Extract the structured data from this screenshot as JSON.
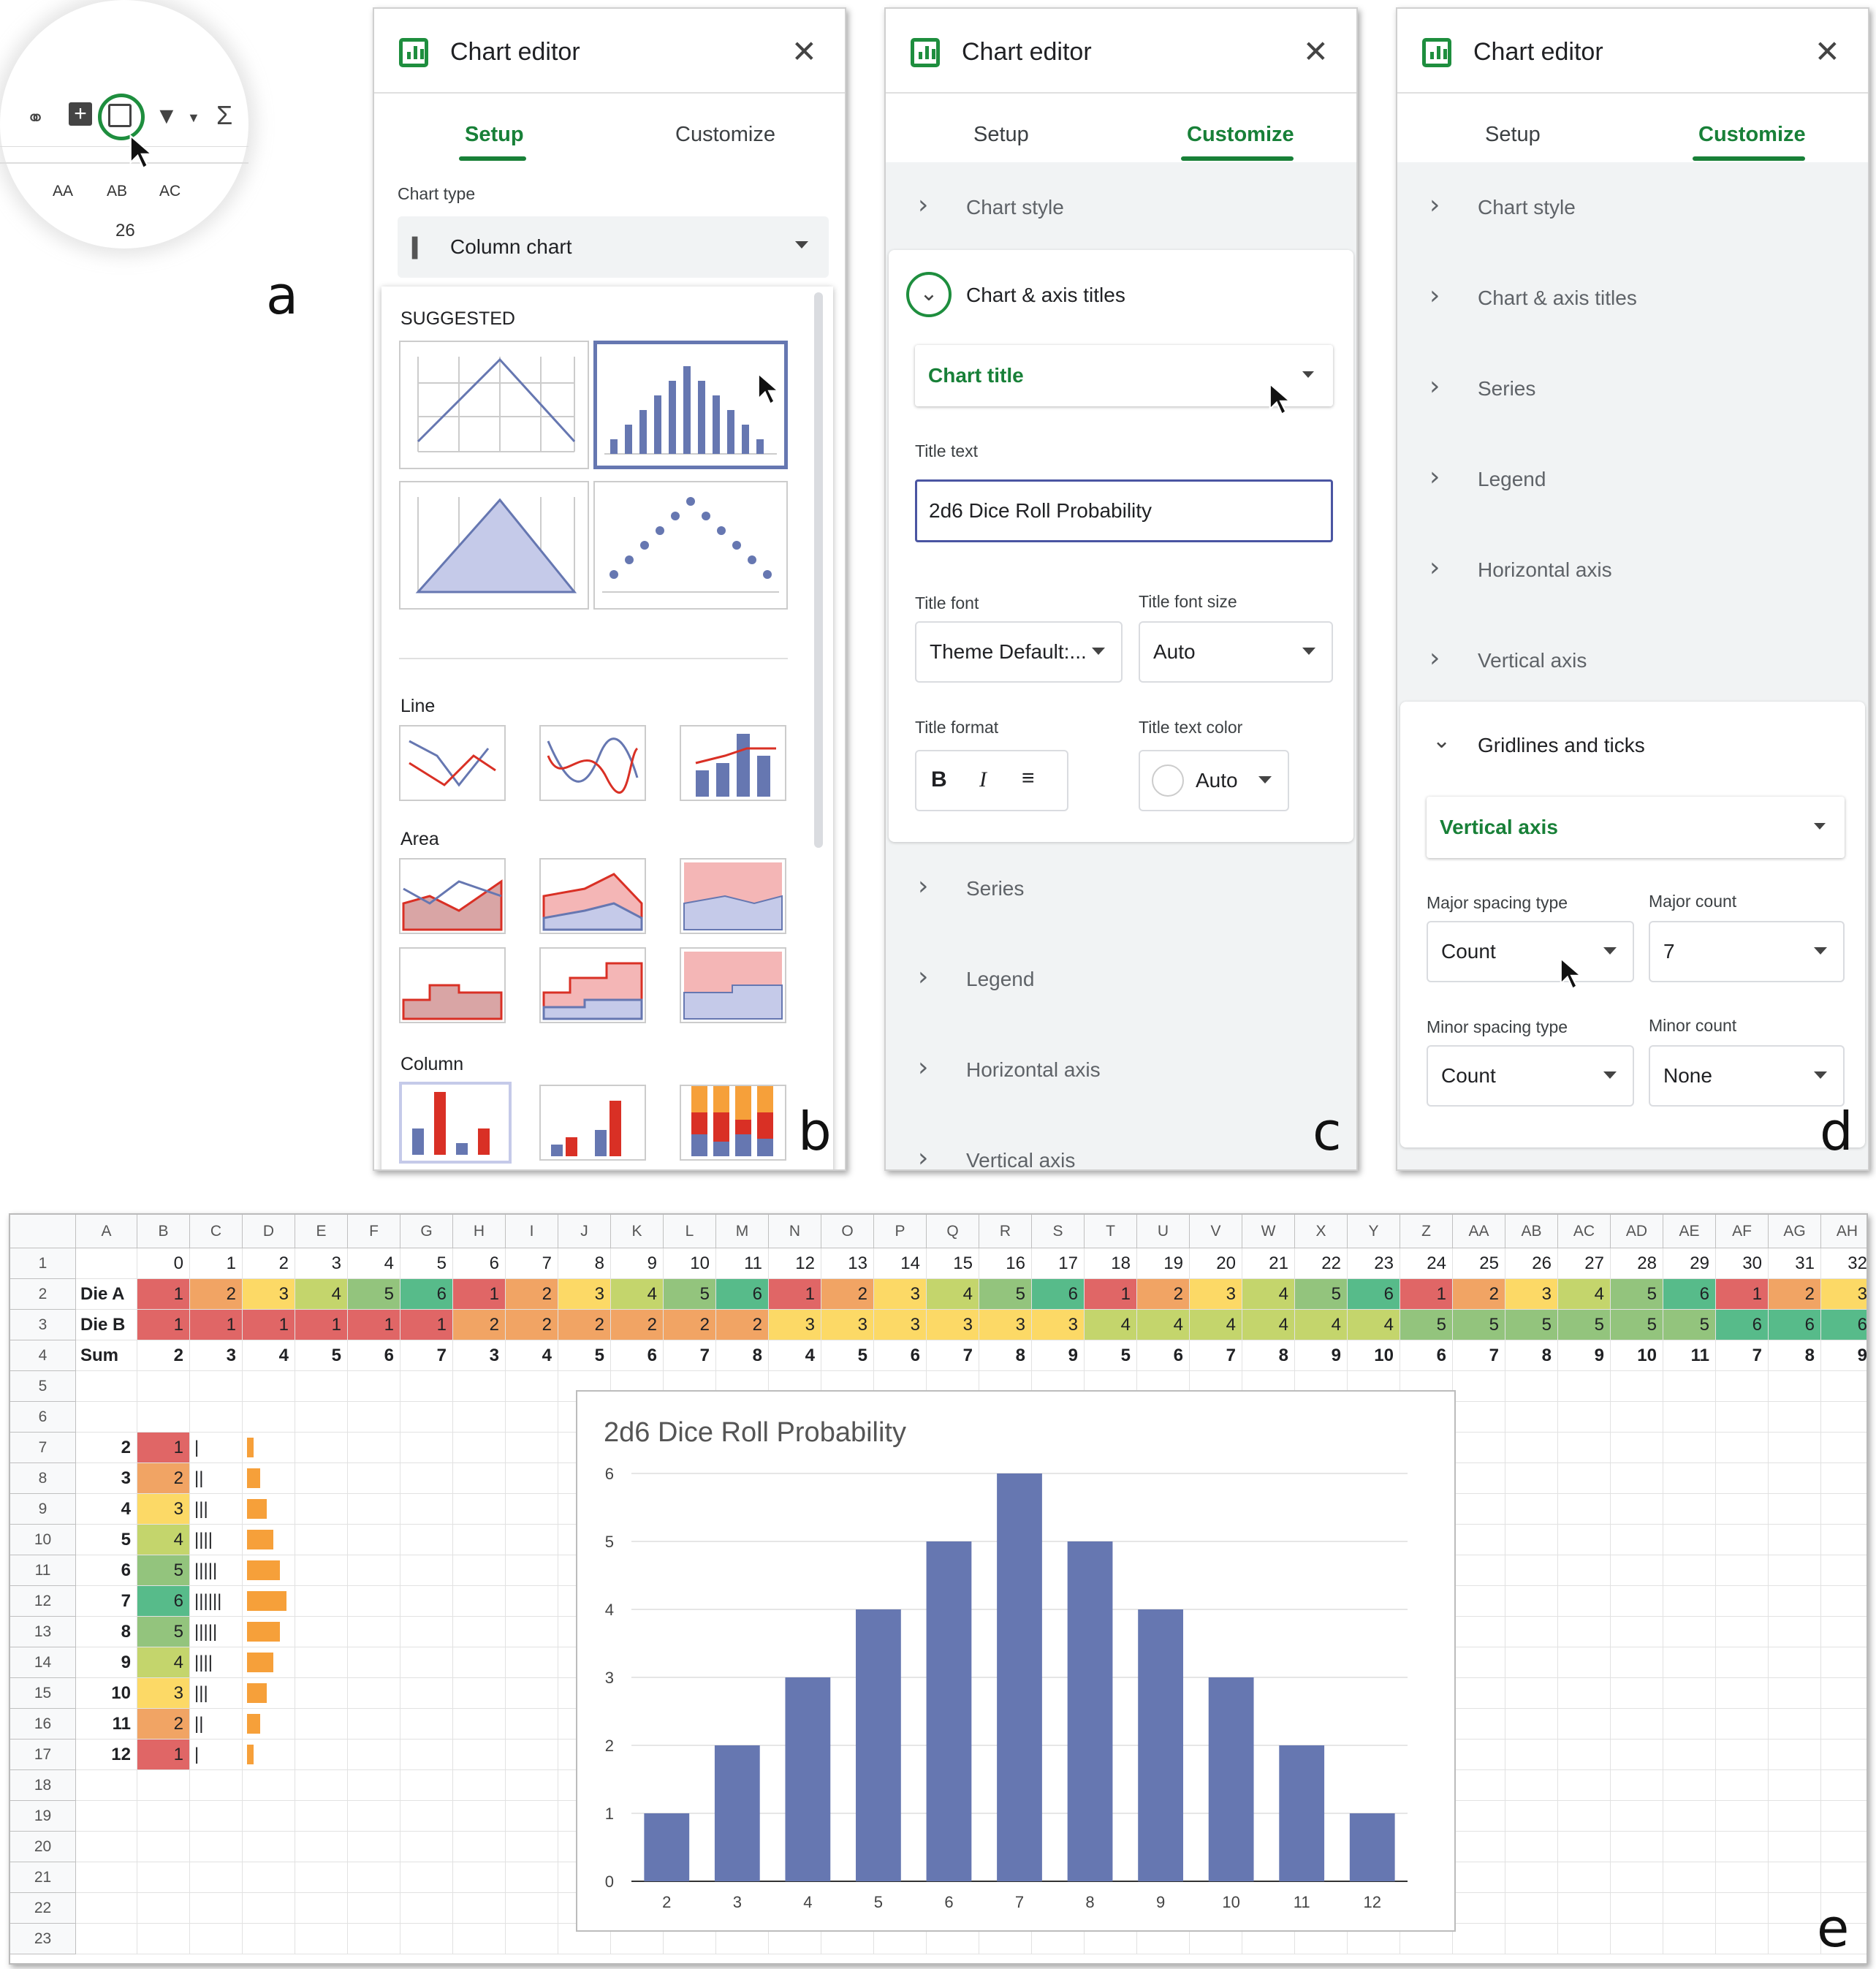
{
  "panel_letters": {
    "a": "a",
    "b": "b",
    "c": "c",
    "d": "d",
    "e": "e"
  },
  "toolbar": {
    "columns": [
      "AA",
      "AB",
      "AC"
    ],
    "row_value": "26",
    "icons": [
      "link-icon",
      "add-comment-icon",
      "insert-chart-icon",
      "filter-icon",
      "dropdown-icon",
      "sum-icon"
    ]
  },
  "editor": {
    "title": "Chart editor",
    "tab_setup": "Setup",
    "tab_customize": "Customize"
  },
  "setup": {
    "chart_type_label": "Chart type",
    "chart_type_value": "Column chart",
    "suggested": "SUGGESTED",
    "groups": [
      "Line",
      "Area",
      "Column"
    ]
  },
  "customize_c": {
    "sections_top": [
      "Chart style"
    ],
    "open_section": "Chart & axis titles",
    "title_dropdown": "Chart title",
    "title_text_label": "Title text",
    "title_text_value": "2d6 Dice Roll Probability",
    "title_font_label": "Title font",
    "title_font_value": "Theme Default:...",
    "title_font_size_label": "Title font size",
    "title_font_size_value": "Auto",
    "title_format_label": "Title format",
    "title_color_label": "Title text color",
    "title_color_value": "Auto",
    "sections_bottom": [
      "Series",
      "Legend",
      "Horizontal axis",
      "Vertical axis"
    ]
  },
  "customize_d": {
    "sections": [
      "Chart style",
      "Chart & axis titles",
      "Series",
      "Legend",
      "Horizontal axis",
      "Vertical axis"
    ],
    "open_section": "Gridlines and ticks",
    "axis_dropdown": "Vertical axis",
    "major_spacing_label": "Major spacing type",
    "major_spacing_value": "Count",
    "major_count_label": "Major count",
    "major_count_value": "7",
    "minor_spacing_label": "Minor spacing type",
    "minor_spacing_value": "Count",
    "minor_count_label": "Minor count",
    "minor_count_value": "None"
  },
  "sheet": {
    "columns": [
      "A",
      "B",
      "C",
      "D",
      "E",
      "F",
      "G",
      "H",
      "I",
      "J",
      "K",
      "L",
      "M",
      "N",
      "O",
      "P",
      "Q",
      "R",
      "S",
      "T",
      "U",
      "V",
      "W",
      "X",
      "Y",
      "Z",
      "AA",
      "AB",
      "AC",
      "AD",
      "AE",
      "AF",
      "AG",
      "AH"
    ],
    "rows": [
      "1",
      "2",
      "3",
      "4",
      "5",
      "6",
      "7",
      "8",
      "9",
      "10",
      "11",
      "12",
      "13",
      "14",
      "15",
      "16",
      "17",
      "18",
      "19",
      "20",
      "21",
      "22",
      "23"
    ],
    "row1": [
      "0",
      "1",
      "2",
      "3",
      "4",
      "5",
      "6",
      "7",
      "8",
      "9",
      "10",
      "11",
      "12",
      "13",
      "14",
      "15",
      "16",
      "17",
      "18",
      "19",
      "20",
      "21",
      "22",
      "23",
      "24",
      "25",
      "26",
      "27",
      "28",
      "29",
      "30",
      "31",
      "32"
    ],
    "die_a_label": "Die A",
    "die_a": [
      "1",
      "2",
      "3",
      "4",
      "5",
      "6",
      "1",
      "2",
      "3",
      "4",
      "5",
      "6",
      "1",
      "2",
      "3",
      "4",
      "5",
      "6",
      "1",
      "2",
      "3",
      "4",
      "5",
      "6",
      "1",
      "2",
      "3",
      "4",
      "5",
      "6",
      "1",
      "2",
      "3"
    ],
    "die_b_label": "Die B",
    "die_b": [
      "1",
      "1",
      "1",
      "1",
      "1",
      "1",
      "2",
      "2",
      "2",
      "2",
      "2",
      "2",
      "3",
      "3",
      "3",
      "3",
      "3",
      "3",
      "4",
      "4",
      "4",
      "4",
      "4",
      "4",
      "5",
      "5",
      "5",
      "5",
      "5",
      "5",
      "6",
      "6",
      "6"
    ],
    "sum_label": "Sum",
    "sum": [
      "2",
      "3",
      "4",
      "5",
      "6",
      "7",
      "3",
      "4",
      "5",
      "6",
      "7",
      "8",
      "4",
      "5",
      "6",
      "7",
      "8",
      "9",
      "5",
      "6",
      "7",
      "8",
      "9",
      "10",
      "6",
      "7",
      "8",
      "9",
      "10",
      "11",
      "7",
      "8",
      "9"
    ],
    "dist_sums": [
      "2",
      "3",
      "4",
      "5",
      "6",
      "7",
      "8",
      "9",
      "10",
      "11",
      "12"
    ],
    "dist_counts": [
      "1",
      "2",
      "3",
      "4",
      "5",
      "6",
      "5",
      "4",
      "3",
      "2",
      "1"
    ],
    "dist_tally": [
      "|",
      "||",
      "|||",
      "||||",
      "|||||",
      "||||||",
      "|||||",
      "||||",
      "|||",
      "||",
      "|"
    ],
    "heat_colors": {
      "1": "#e06666",
      "2": "#f1a464",
      "3": "#fcd966",
      "4": "#c4d56c",
      "5": "#93c47d",
      "6": "#57bb8a"
    },
    "sparkbar_color": "#f6a03a"
  },
  "chart_data": {
    "type": "bar",
    "title": "2d6 Dice Roll Probability",
    "categories": [
      "2",
      "3",
      "4",
      "5",
      "6",
      "7",
      "8",
      "9",
      "10",
      "11",
      "12"
    ],
    "values": [
      1,
      2,
      3,
      4,
      5,
      6,
      5,
      4,
      3,
      2,
      1
    ],
    "ylim": [
      0,
      6
    ],
    "yticks": [
      "0",
      "1",
      "2",
      "3",
      "4",
      "5",
      "6"
    ],
    "bar_color": "#6677b1",
    "grid": true,
    "xlabel": "",
    "ylabel": ""
  }
}
